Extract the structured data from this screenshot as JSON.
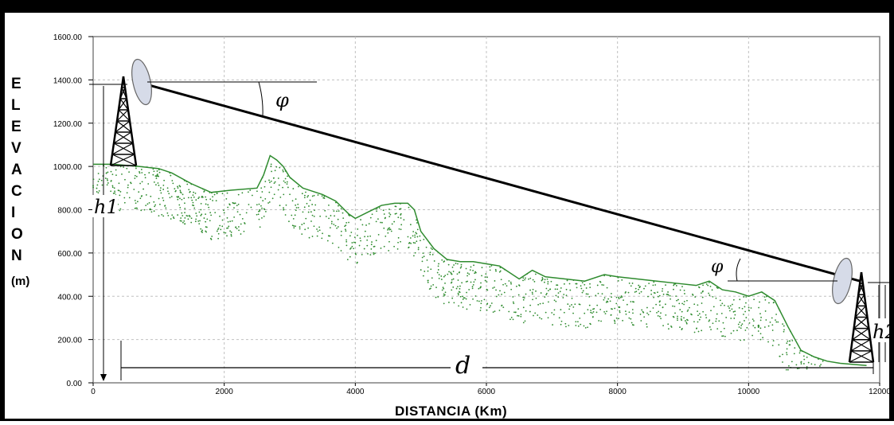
{
  "chart_data": {
    "type": "line",
    "title": "",
    "xlabel": "DISTANCIA (Km)",
    "ylabel_letters": [
      "E",
      "L",
      "E",
      "V",
      "A",
      "C",
      "I",
      "O",
      "N"
    ],
    "ylabel_unit": "(m)",
    "xlim": [
      0,
      12000
    ],
    "ylim": [
      0,
      1600
    ],
    "x_ticks": [
      "0",
      "2000",
      "4000",
      "6000",
      "8000",
      "10000",
      "12000"
    ],
    "x_tick_values": [
      0,
      2000,
      4000,
      6000,
      8000,
      10000,
      12000
    ],
    "y_ticks": [
      "0.00",
      "200.00",
      "400.00",
      "600.00",
      "800.00",
      "1000.00",
      "1200.00",
      "1400.00",
      "1600.00"
    ],
    "y_tick_values": [
      0,
      200,
      400,
      600,
      800,
      1000,
      1200,
      1400,
      1600
    ],
    "grid": true,
    "series": [
      {
        "color": "#2e8b2e",
        "x": [
          0,
          300,
          700,
          1000,
          1200,
          1500,
          1800,
          2100,
          2500,
          2600,
          2700,
          2800,
          2900,
          3000,
          3200,
          3500,
          3700,
          3900,
          4000,
          4200,
          4400,
          4600,
          4800,
          4900,
          5000,
          5200,
          5400,
          5600,
          5800,
          6000,
          6200,
          6500,
          6700,
          6900,
          7200,
          7500,
          7800,
          8000,
          8300,
          8600,
          8900,
          9200,
          9400,
          9600,
          9800,
          10000,
          10200,
          10400,
          10600,
          10800,
          11000,
          11200,
          11400,
          11800
        ],
        "y": [
          1010,
          1010,
          1000,
          990,
          970,
          920,
          880,
          890,
          900,
          960,
          1050,
          1030,
          1000,
          950,
          900,
          870,
          840,
          780,
          760,
          790,
          820,
          830,
          830,
          800,
          700,
          620,
          570,
          560,
          560,
          550,
          540,
          480,
          520,
          490,
          480,
          470,
          500,
          490,
          480,
          470,
          460,
          450,
          470,
          430,
          420,
          400,
          420,
          380,
          260,
          150,
          120,
          100,
          90,
          80
        ]
      }
    ],
    "annotations": {
      "left_height": "h1",
      "right_height": "h2",
      "distance": "d",
      "angle_left": "φ",
      "angle_right": "φ"
    },
    "link_line": {
      "color": "#000000",
      "x": [
        800,
        11700
      ],
      "y": [
        1380,
        470
      ]
    },
    "colors": {
      "terrain": "#2e8b2e",
      "grid": "#c0c0c0",
      "link": "#000000",
      "frame": "#000000"
    }
  }
}
